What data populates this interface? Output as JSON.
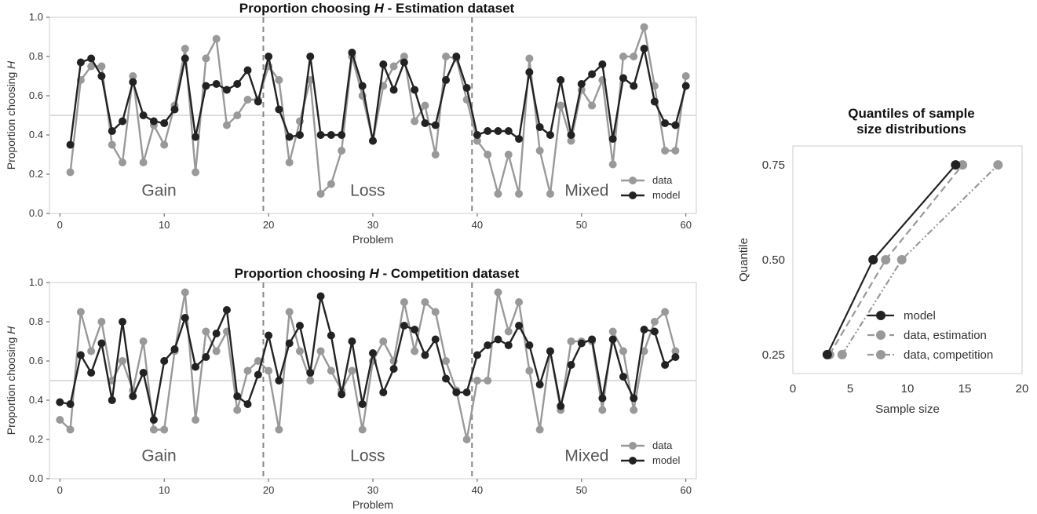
{
  "chart_data": [
    {
      "type": "line",
      "title_prefix": "Proportion choosing ",
      "title_italic": "H",
      "title_suffix": " - Estimation dataset",
      "xlabel": "Problem",
      "ylabel_prefix": "Proportion choosing ",
      "ylabel_italic": "H",
      "xlim": [
        -1,
        61
      ],
      "ylim": [
        0,
        1
      ],
      "xticks": [
        "0",
        "10",
        "20",
        "30",
        "40",
        "50",
        "60"
      ],
      "yticks": [
        "0.0",
        "0.2",
        "0.4",
        "0.6",
        "0.8",
        "1.0"
      ],
      "reference_line_y": 0.5,
      "dividers_x": [
        19.5,
        39.5
      ],
      "regions": [
        {
          "label": "Gain",
          "x": 9.5
        },
        {
          "label": "Loss",
          "x": 29.5
        },
        {
          "label": "Mixed",
          "x": 50.5
        }
      ],
      "legend_position": "lower right",
      "x": [
        1,
        2,
        3,
        4,
        5,
        6,
        7,
        8,
        9,
        10,
        11,
        12,
        13,
        14,
        15,
        16,
        17,
        18,
        19,
        20,
        21,
        22,
        23,
        24,
        25,
        26,
        27,
        28,
        29,
        30,
        31,
        32,
        33,
        34,
        35,
        36,
        37,
        38,
        39,
        40,
        41,
        42,
        43,
        44,
        45,
        46,
        47,
        48,
        49,
        50,
        51,
        52,
        53,
        54,
        55,
        56,
        57,
        58,
        59,
        60
      ],
      "series": [
        {
          "name": "data",
          "color": "#999999",
          "values": [
            0.21,
            0.68,
            0.75,
            0.75,
            0.35,
            0.26,
            0.7,
            0.26,
            0.45,
            0.35,
            0.55,
            0.84,
            0.21,
            0.79,
            0.89,
            0.45,
            0.5,
            0.58,
            0.58,
            0.75,
            0.68,
            0.26,
            0.47,
            0.68,
            0.1,
            0.15,
            0.32,
            0.8,
            0.6,
            0.37,
            0.65,
            0.75,
            0.8,
            0.47,
            0.55,
            0.3,
            0.8,
            0.79,
            0.58,
            0.37,
            0.3,
            0.1,
            0.3,
            0.1,
            0.79,
            0.32,
            0.1,
            0.55,
            0.37,
            0.63,
            0.55,
            0.68,
            0.25,
            0.8,
            0.8,
            0.95,
            0.65,
            0.32,
            0.32,
            0.7
          ]
        },
        {
          "name": "model",
          "color": "#222222",
          "values": [
            0.35,
            0.77,
            0.79,
            0.7,
            0.42,
            0.47,
            0.67,
            0.5,
            0.47,
            0.46,
            0.53,
            0.79,
            0.39,
            0.65,
            0.66,
            0.63,
            0.66,
            0.73,
            0.57,
            0.8,
            0.53,
            0.39,
            0.4,
            0.8,
            0.4,
            0.4,
            0.4,
            0.82,
            0.65,
            0.37,
            0.76,
            0.63,
            0.77,
            0.63,
            0.46,
            0.45,
            0.68,
            0.8,
            0.64,
            0.4,
            0.42,
            0.42,
            0.42,
            0.38,
            0.72,
            0.44,
            0.4,
            0.68,
            0.4,
            0.66,
            0.71,
            0.76,
            0.38,
            0.69,
            0.65,
            0.84,
            0.57,
            0.46,
            0.45,
            0.65
          ]
        }
      ]
    },
    {
      "type": "line",
      "title_prefix": "Proportion choosing ",
      "title_italic": "H",
      "title_suffix": " - Competition dataset",
      "xlabel": "Problem",
      "ylabel_prefix": "Proportion choosing ",
      "ylabel_italic": "H",
      "xlim": [
        -1,
        61
      ],
      "ylim": [
        0,
        1
      ],
      "xticks": [
        "0",
        "10",
        "20",
        "30",
        "40",
        "50",
        "60"
      ],
      "yticks": [
        "0.0",
        "0.2",
        "0.4",
        "0.6",
        "0.8",
        "1.0"
      ],
      "reference_line_y": 0.5,
      "dividers_x": [
        19.5,
        39.5
      ],
      "regions": [
        {
          "label": "Gain",
          "x": 9.5
        },
        {
          "label": "Loss",
          "x": 29.5
        },
        {
          "label": "Mixed",
          "x": 50.5
        }
      ],
      "legend_position": "lower right",
      "x": [
        0,
        1,
        2,
        3,
        4,
        5,
        6,
        7,
        8,
        9,
        10,
        11,
        12,
        13,
        14,
        15,
        16,
        17,
        18,
        19,
        20,
        21,
        22,
        23,
        24,
        25,
        26,
        27,
        28,
        29,
        30,
        31,
        32,
        33,
        34,
        35,
        36,
        37,
        38,
        39,
        40,
        41,
        42,
        43,
        44,
        45,
        46,
        47,
        48,
        49,
        50,
        51,
        52,
        53,
        54,
        55,
        56,
        57,
        58,
        59
      ],
      "series": [
        {
          "name": "data",
          "color": "#999999",
          "values": [
            0.3,
            0.25,
            0.85,
            0.65,
            0.8,
            0.5,
            0.6,
            0.45,
            0.7,
            0.25,
            0.25,
            0.65,
            0.95,
            0.3,
            0.75,
            0.65,
            0.75,
            0.35,
            0.55,
            0.6,
            0.55,
            0.25,
            0.85,
            0.65,
            0.5,
            0.65,
            0.55,
            0.45,
            0.55,
            0.25,
            0.6,
            0.7,
            0.6,
            0.9,
            0.65,
            0.9,
            0.85,
            0.6,
            0.45,
            0.2,
            0.5,
            0.5,
            0.95,
            0.75,
            0.9,
            0.55,
            0.25,
            0.65,
            0.35,
            0.7,
            0.7,
            0.7,
            0.35,
            0.75,
            0.65,
            0.35,
            0.65,
            0.8,
            0.85,
            0.65
          ]
        },
        {
          "name": "model",
          "color": "#222222",
          "values": [
            0.39,
            0.38,
            0.63,
            0.54,
            0.69,
            0.4,
            0.8,
            0.42,
            0.54,
            0.3,
            0.6,
            0.66,
            0.82,
            0.57,
            0.62,
            0.74,
            0.86,
            0.42,
            0.38,
            0.53,
            0.73,
            0.5,
            0.69,
            0.78,
            0.54,
            0.93,
            0.73,
            0.43,
            0.7,
            0.38,
            0.64,
            0.44,
            0.56,
            0.78,
            0.76,
            0.63,
            0.71,
            0.51,
            0.44,
            0.44,
            0.63,
            0.68,
            0.71,
            0.68,
            0.78,
            0.68,
            0.48,
            0.65,
            0.37,
            0.58,
            0.69,
            0.71,
            0.41,
            0.71,
            0.52,
            0.41,
            0.76,
            0.75,
            0.58,
            0.62
          ]
        }
      ]
    },
    {
      "type": "line",
      "title_lines": [
        "Quantiles of sample",
        "size distributions"
      ],
      "xlabel": "Sample size",
      "ylabel": "Quantile",
      "xlim": [
        0,
        20
      ],
      "ylim": [
        0.2,
        0.8
      ],
      "xticks": [
        "0",
        "5",
        "10",
        "15",
        "20"
      ],
      "yticks": [
        "0.25",
        "0.50",
        "0.75"
      ],
      "legend_position": "lower right",
      "y": [
        0.25,
        0.5,
        0.75
      ],
      "series": [
        {
          "name": "model",
          "color": "#222222",
          "dash": "solid",
          "x": [
            3,
            7,
            14.2
          ]
        },
        {
          "name": "data, estimation",
          "color": "#999999",
          "dash": "dashed",
          "x": [
            3.2,
            8.1,
            14.8
          ]
        },
        {
          "name": "data, competition",
          "color": "#999999",
          "dash": "dashdot",
          "x": [
            4.3,
            9.5,
            17.9
          ]
        }
      ]
    }
  ]
}
